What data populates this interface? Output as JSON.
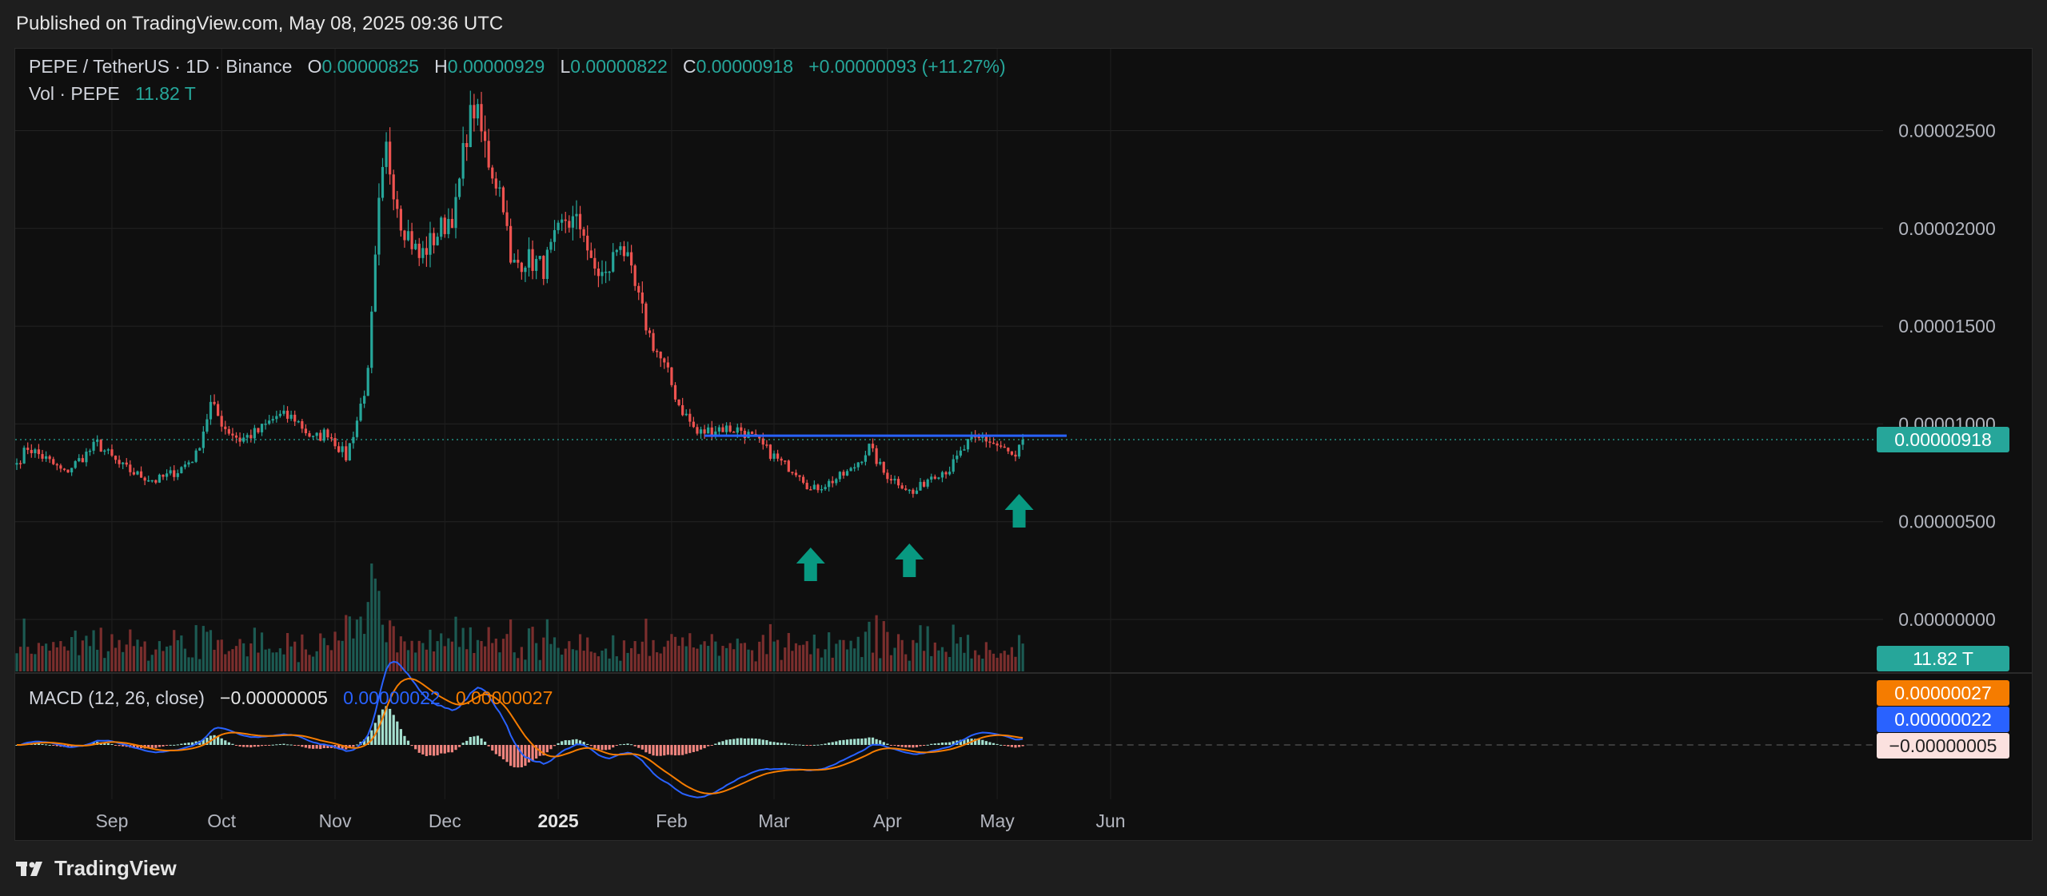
{
  "header": {
    "published": "Published on TradingView.com, May 08, 2025 09:36 UTC"
  },
  "legend": {
    "symbol": "PEPE / TetherUS · 1D · Binance",
    "open_label": "O",
    "open": "0.00000825",
    "high_label": "H",
    "high": "0.00000929",
    "low_label": "L",
    "low": "0.00000822",
    "close_label": "C",
    "close": "0.00000918",
    "change": "+0.00000093 (+11.27%)",
    "vol_label": "Vol · PEPE",
    "vol": "11.82 T"
  },
  "macd_legend": {
    "label": "MACD (12, 26, close)",
    "hist": "−0.00000005",
    "macd": "0.00000022",
    "signal": "0.00000027"
  },
  "footer": {
    "brand": "TradingView"
  },
  "colors": {
    "up": "#26a69a",
    "down": "#ef5350",
    "macd": "#2962ff",
    "signal": "#f57c00",
    "resistance": "#2962ff",
    "arrow": "#089981"
  },
  "chart_data": {
    "type": "candlestick",
    "symbol": "PEPE / TetherUS",
    "interval": "1D",
    "exchange": "Binance",
    "price_ticks": [
      2.5e-05,
      2e-05,
      1.5e-05,
      1e-05,
      5e-06,
      0
    ],
    "price_tick_labels": [
      "0.00002500",
      "0.00002000",
      "0.00001500",
      "0.00001000",
      "0.00000500",
      "0.00000000"
    ],
    "current_price_label": "0.00000918",
    "current_volume_label": "11.82 T",
    "macd_badges": [
      "0.00000027",
      "0.00000022",
      "−0.00000005"
    ],
    "x_tick_labels": [
      "Sep",
      "Oct",
      "Nov",
      "Dec",
      "2025",
      "Feb",
      "Mar",
      "Apr",
      "May",
      "Jun"
    ],
    "x_tick_dates": [
      "2024-09-01",
      "2024-10-01",
      "2024-11-01",
      "2024-12-01",
      "2025-01-01",
      "2025-02-01",
      "2025-03-01",
      "2025-04-01",
      "2025-05-01",
      "2025-06-01"
    ],
    "resistance_level": 9.4e-06,
    "resistance_from": "2025-02-10",
    "resistance_to": "2025-05-20",
    "arrows": [
      {
        "date": "2025-03-11",
        "direction": "up"
      },
      {
        "date": "2025-04-07",
        "direction": "up"
      },
      {
        "date": "2025-05-07",
        "direction": "up"
      }
    ],
    "start_date": "2024-08-06",
    "end_date": "2025-05-08",
    "close_path": [
      [
        "2024-08-06",
        8e-06
      ],
      [
        "2024-08-09",
        8.8e-06
      ],
      [
        "2024-08-14",
        8.2e-06
      ],
      [
        "2024-08-19",
        7.5e-06
      ],
      [
        "2024-08-24",
        8.3e-06
      ],
      [
        "2024-08-28",
        9e-06
      ],
      [
        "2024-09-03",
        7.9e-06
      ],
      [
        "2024-09-08",
        7.4e-06
      ],
      [
        "2024-09-13",
        7.1e-06
      ],
      [
        "2024-09-19",
        7.6e-06
      ],
      [
        "2024-09-24",
        8.4e-06
      ],
      [
        "2024-09-28",
        1.1e-05
      ],
      [
        "2024-10-02",
        9.8e-06
      ],
      [
        "2024-10-06",
        9.2e-06
      ],
      [
        "2024-10-11",
        9.6e-06
      ],
      [
        "2024-10-16",
        1.04e-05
      ],
      [
        "2024-10-21",
        1.03e-05
      ],
      [
        "2024-10-26",
        9.2e-06
      ],
      [
        "2024-10-30",
        9.6e-06
      ],
      [
        "2024-11-04",
        8.3e-06
      ],
      [
        "2024-11-07",
        1.02e-05
      ],
      [
        "2024-11-10",
        1.25e-05
      ],
      [
        "2024-11-13",
        2.1e-05
      ],
      [
        "2024-11-15",
        2.4e-05
      ],
      [
        "2024-11-19",
        2.05e-05
      ],
      [
        "2024-11-24",
        1.85e-05
      ],
      [
        "2024-11-30",
        2e-05
      ],
      [
        "2024-12-04",
        2.1e-05
      ],
      [
        "2024-12-07",
        2.5e-05
      ],
      [
        "2024-12-09",
        2.62e-05
      ],
      [
        "2024-12-13",
        2.35e-05
      ],
      [
        "2024-12-17",
        2.15e-05
      ],
      [
        "2024-12-19",
        1.8e-05
      ],
      [
        "2024-12-23",
        1.85e-05
      ],
      [
        "2024-12-28",
        1.8e-05
      ],
      [
        "2025-01-03",
        2.05e-05
      ],
      [
        "2025-01-08",
        2e-05
      ],
      [
        "2025-01-10",
        1.8e-05
      ],
      [
        "2025-01-14",
        1.75e-05
      ],
      [
        "2025-01-18",
        1.95e-05
      ],
      [
        "2025-01-21",
        1.75e-05
      ],
      [
        "2025-01-26",
        1.45e-05
      ],
      [
        "2025-01-31",
        1.25e-05
      ],
      [
        "2025-02-03",
        1.1e-05
      ],
      [
        "2025-02-08",
        9.5e-06
      ],
      [
        "2025-02-14",
        9.8e-06
      ],
      [
        "2025-02-20",
        9.7e-06
      ],
      [
        "2025-02-25",
        9e-06
      ],
      [
        "2025-03-03",
        8e-06
      ],
      [
        "2025-03-08",
        7.5e-06
      ],
      [
        "2025-03-11",
        6.6e-06
      ],
      [
        "2025-03-16",
        7e-06
      ],
      [
        "2025-03-22",
        7.6e-06
      ],
      [
        "2025-03-27",
        8.8e-06
      ],
      [
        "2025-03-31",
        7.5e-06
      ],
      [
        "2025-04-05",
        6.9e-06
      ],
      [
        "2025-04-08",
        6.4e-06
      ],
      [
        "2025-04-13",
        7.4e-06
      ],
      [
        "2025-04-18",
        7.7e-06
      ],
      [
        "2025-04-23",
        9e-06
      ],
      [
        "2025-04-27",
        9.3e-06
      ],
      [
        "2025-05-02",
        8.8e-06
      ],
      [
        "2025-05-06",
        8.2e-06
      ],
      [
        "2025-05-08",
        9.2e-06
      ]
    ]
  }
}
